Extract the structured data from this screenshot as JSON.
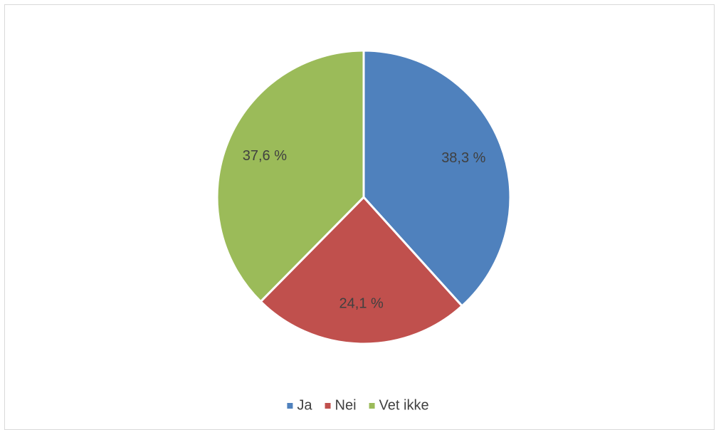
{
  "chart_data": {
    "type": "pie",
    "title": "",
    "legend_position": "bottom",
    "slices": [
      {
        "name": "Ja",
        "value": 38.3,
        "label": "38,3 %",
        "color": "#4F81BD"
      },
      {
        "name": "Nei",
        "value": 24.1,
        "label": "24,1 %",
        "color": "#C0504D"
      },
      {
        "name": "Vet ikke",
        "value": 37.6,
        "label": "37,6 %",
        "color": "#9BBB59"
      }
    ]
  }
}
